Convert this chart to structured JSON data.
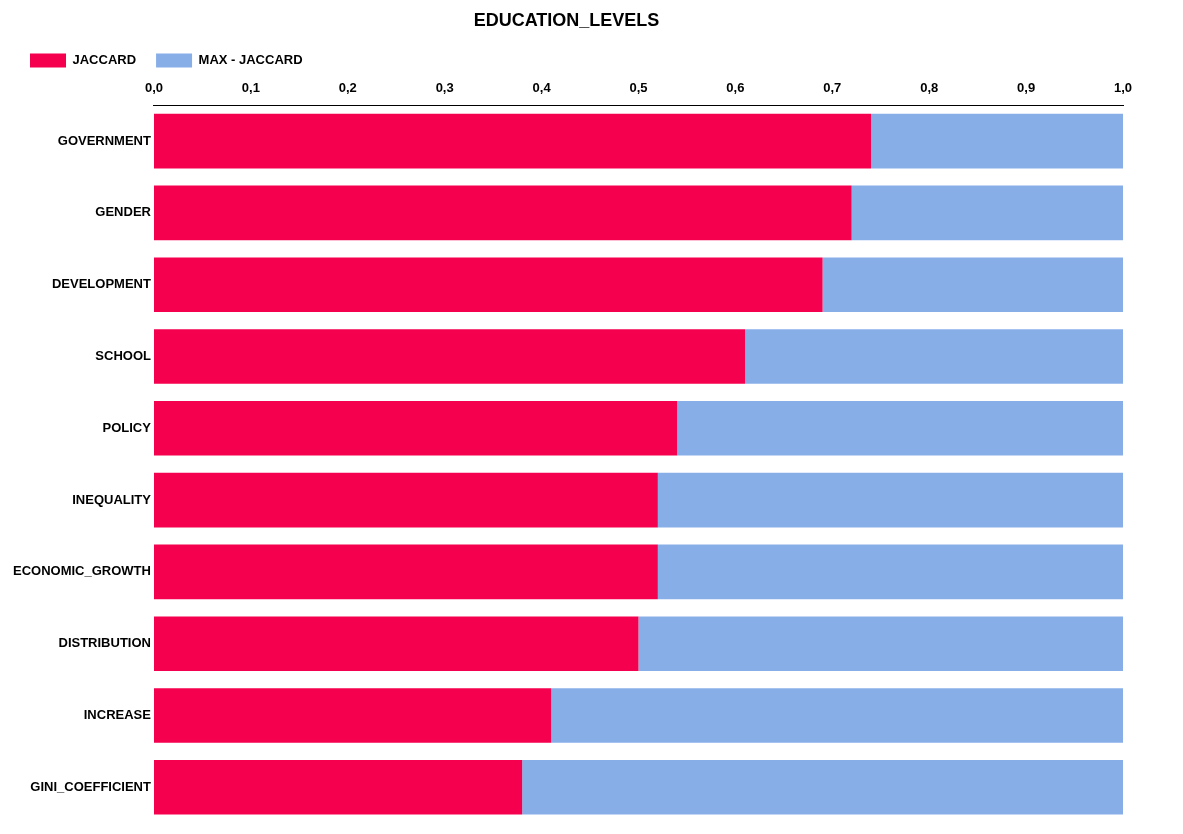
{
  "chart_data": {
    "type": "bar",
    "title": "EDUCATION_LEVELS",
    "orientation": "horizontal",
    "stacked": true,
    "legend": "top left",
    "grid": false,
    "categories": [
      "GOVERNMENT",
      "GENDER",
      "DEVELOPMENT",
      "SCHOOL",
      "POLICY",
      "INEQUALITY",
      "ECONOMIC_GROWTH",
      "DISTRIBUTION",
      "INCREASE",
      "GINI_COEFFICIENT"
    ],
    "series": [
      {
        "name": "JACCARD",
        "color": "#f5004f",
        "values": [
          0.74,
          0.72,
          0.69,
          0.61,
          0.54,
          0.52,
          0.52,
          0.5,
          0.41,
          0.38
        ]
      },
      {
        "name": "MAX - JACCARD",
        "color": "#88aee8",
        "values": [
          0.26,
          0.28,
          0.31,
          0.39,
          0.46,
          0.48,
          0.48,
          0.5,
          0.59,
          0.62
        ]
      }
    ],
    "xlim": [
      0,
      1
    ],
    "xticks": [
      {
        "value": 0,
        "label": "0,0"
      },
      {
        "value": 0.1,
        "label": "0,1"
      },
      {
        "value": 0.2,
        "label": "0,2"
      },
      {
        "value": 0.3,
        "label": "0,3"
      },
      {
        "value": 0.4,
        "label": "0,4"
      },
      {
        "value": 0.5,
        "label": "0,5"
      },
      {
        "value": 0.6,
        "label": "0,6"
      },
      {
        "value": 0.7,
        "label": "0,7"
      },
      {
        "value": 0.8,
        "label": "0,8"
      },
      {
        "value": 0.9,
        "label": "0,9"
      },
      {
        "value": 1,
        "label": "1,0"
      }
    ]
  }
}
